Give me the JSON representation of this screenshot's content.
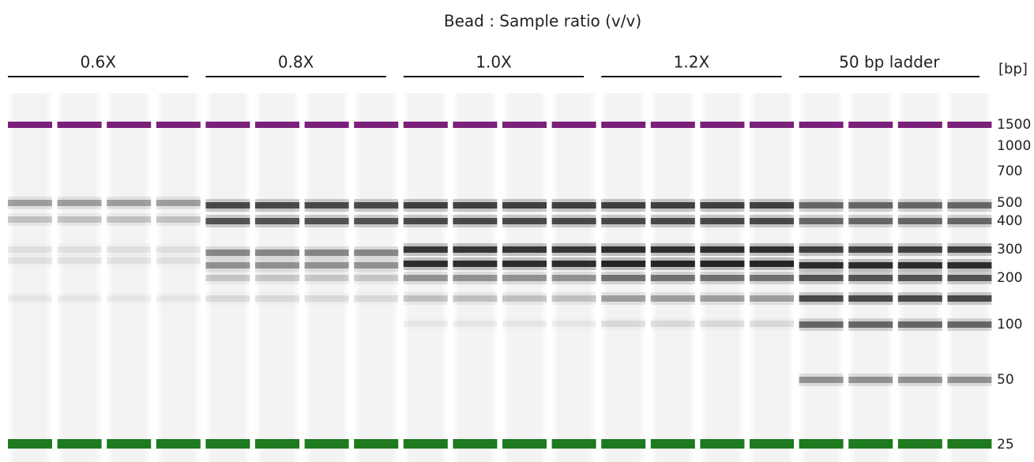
{
  "title": "Bead : Sample ratio (v/v)",
  "groups": [
    "0.6X",
    "0.8X",
    "1.0X",
    "1.2X",
    "50 bp ladder"
  ],
  "unit": "[bp]",
  "sizes": [
    "1500",
    "1000",
    "700",
    "500",
    "400",
    "300",
    "200",
    "100",
    "50",
    "25"
  ]
}
